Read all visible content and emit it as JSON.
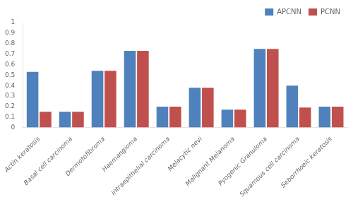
{
  "chart_data": {
    "type": "bar",
    "categories": [
      "Actin keratosis",
      "Basal cell carcinoma",
      "Dermotofibroma",
      "Haemangioma",
      "Intraepithelial carcinoma",
      "Melacytic nevi",
      "Malignant Melanoma",
      "Pyogenic Granuloma",
      "Squamous cell carcinoma",
      "Seborrhoeic keratosis"
    ],
    "series": [
      {
        "name": "APCNN",
        "color": "#4F81BD",
        "values": [
          0.53,
          0.15,
          0.54,
          0.73,
          0.2,
          0.38,
          0.17,
          0.75,
          0.4,
          0.2
        ]
      },
      {
        "name": "PCNN",
        "color": "#C0504D",
        "values": [
          0.15,
          0.15,
          0.54,
          0.73,
          0.2,
          0.38,
          0.17,
          0.75,
          0.19,
          0.2
        ]
      }
    ],
    "ylim": [
      0,
      1
    ],
    "yticks": [
      0,
      0.1,
      0.2,
      0.3,
      0.4,
      0.5,
      0.6,
      0.7,
      0.8,
      0.9,
      1
    ],
    "grid": false,
    "legend": "upper right"
  }
}
